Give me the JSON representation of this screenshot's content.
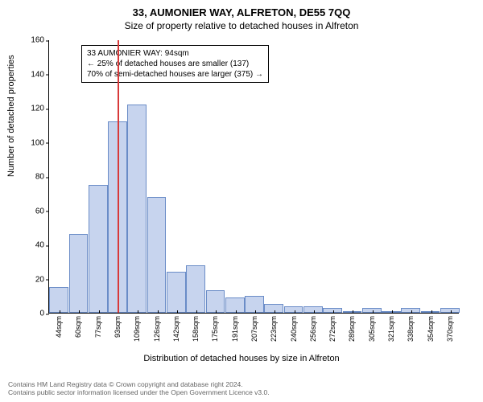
{
  "title": "33, AUMONIER WAY, ALFRETON, DE55 7QQ",
  "subtitle": "Size of property relative to detached houses in Alfreton",
  "chart": {
    "type": "bar",
    "ylabel": "Number of detached properties",
    "xlabel": "Distribution of detached houses by size in Alfreton",
    "ylim": [
      0,
      160
    ],
    "ytick_step": 20,
    "categories": [
      "44sqm",
      "60sqm",
      "77sqm",
      "93sqm",
      "109sqm",
      "126sqm",
      "142sqm",
      "158sqm",
      "175sqm",
      "191sqm",
      "207sqm",
      "223sqm",
      "240sqm",
      "256sqm",
      "272sqm",
      "289sqm",
      "305sqm",
      "321sqm",
      "338sqm",
      "354sqm",
      "370sqm"
    ],
    "values": [
      15,
      46,
      75,
      112,
      122,
      68,
      24,
      28,
      13,
      9,
      10,
      5,
      4,
      4,
      3,
      0,
      3,
      0,
      3,
      0,
      3
    ],
    "bar_fill": "#c7d4ee",
    "bar_border": "#6a8cc7",
    "background_color": "#ffffff",
    "refline_color": "#d83a3a",
    "refline_x_index": 3.06,
    "annotation": {
      "line1": "33 AUMONIER WAY: 94sqm",
      "line2": "← 25% of detached houses are smaller (137)",
      "line3": "70% of semi-detached houses are larger (375) →",
      "border_color": "#000000",
      "fontsize": 10,
      "bg": "#ffffff"
    },
    "title_fontsize": 13,
    "subtitle_fontsize": 12,
    "label_fontsize": 11,
    "tick_fontsize": 10
  },
  "footer": {
    "line1": "Contains HM Land Registry data © Crown copyright and database right 2024.",
    "line2": "Contains public sector information licensed under the Open Government Licence v3.0."
  }
}
